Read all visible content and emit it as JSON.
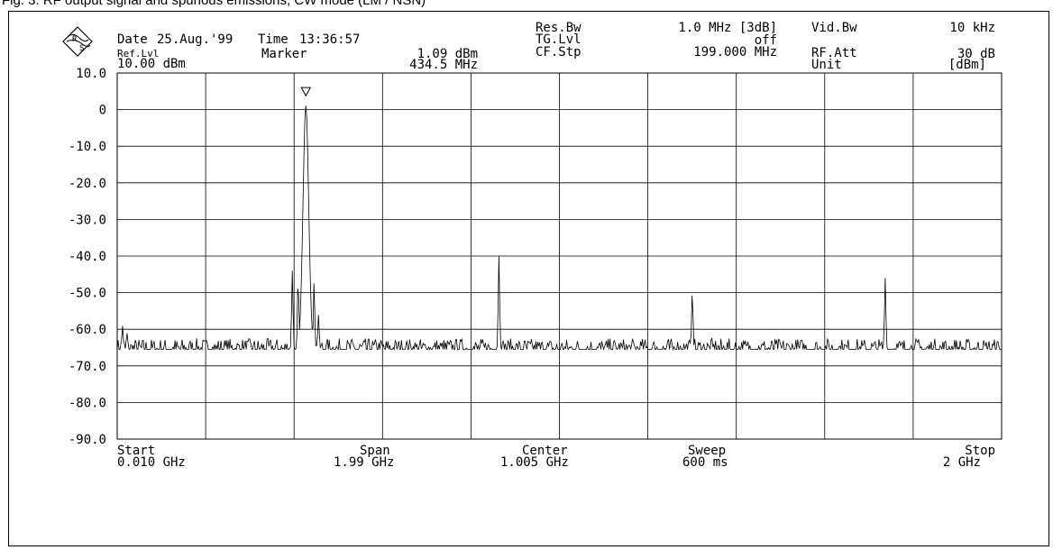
{
  "figure": {
    "caption": "Fig. 3:   RF output signal and spurious emissions, CW mode (LM /  NSN)"
  },
  "logo": {
    "text": "R&S"
  },
  "header": {
    "date_label": "Date",
    "date_value": "25.Aug.'99",
    "time_label": "Time",
    "time_value": "13:36:57",
    "ref_lvl_label": "Ref.Lvl",
    "ref_lvl_value": "10.00 dBm",
    "marker_label": "Marker",
    "marker_level": "1.09 dBm",
    "marker_freq": "434.5 MHz",
    "res_bw_label": "Res.Bw",
    "res_bw_value": "1.0 MHz [3dB]",
    "tg_lvl_label": "TG.Lvl",
    "tg_lvl_value": "off",
    "cf_stp_label": "CF.Stp",
    "cf_stp_value": "199.000 MHz",
    "vid_bw_label": "Vid.Bw",
    "vid_bw_value": "10 kHz",
    "rf_att_label": "RF.Att",
    "rf_att_value": "30 dB",
    "unit_label": "Unit",
    "unit_value": "[dBm]"
  },
  "footer": {
    "start_label": "Start",
    "start_value": "0.010 GHz",
    "span_label": "Span",
    "span_value": "1.99 GHz",
    "center_label": "Center",
    "center_value": "1.005 GHz",
    "sweep_label": "Sweep",
    "sweep_value": "600 ms",
    "stop_label": "Stop",
    "stop_value": "2 GHz"
  },
  "chart_data": {
    "type": "line",
    "title": "",
    "xlabel": "",
    "ylabel": "",
    "x_unit": "GHz",
    "y_unit": "dBm",
    "xlim": [
      0.01,
      2.0
    ],
    "ylim": [
      -90,
      10
    ],
    "grid": true,
    "x_divisions": 10,
    "ytick_values": [
      10,
      0,
      -10,
      -20,
      -30,
      -40,
      -50,
      -60,
      -70,
      -80,
      -90
    ],
    "ytick_labels": [
      "10.0",
      "0",
      "-10.0",
      "-20.0",
      "-30.0",
      "-40.0",
      "-50.0",
      "-60.0",
      "-70.0",
      "-80.0",
      "-90.0"
    ],
    "noise_floor_dbm": -65.5,
    "noise_amplitude_db": 3,
    "series": [
      {
        "color": "#000000",
        "peaks": [
          {
            "x": 0.022,
            "y": -59
          },
          {
            "x": 0.032,
            "y": -61
          },
          {
            "x": 0.404,
            "y": -44
          },
          {
            "x": 0.417,
            "y": -46
          },
          {
            "x": 0.4345,
            "y": 1.09
          },
          {
            "x": 0.453,
            "y": -47
          },
          {
            "x": 0.463,
            "y": -56
          },
          {
            "x": 0.869,
            "y": -40
          },
          {
            "x": 1.304,
            "y": -50
          },
          {
            "x": 1.738,
            "y": -46
          }
        ]
      }
    ],
    "marker": {
      "x": 0.4345,
      "y": 1.09,
      "symbol": "triangle-down"
    }
  }
}
